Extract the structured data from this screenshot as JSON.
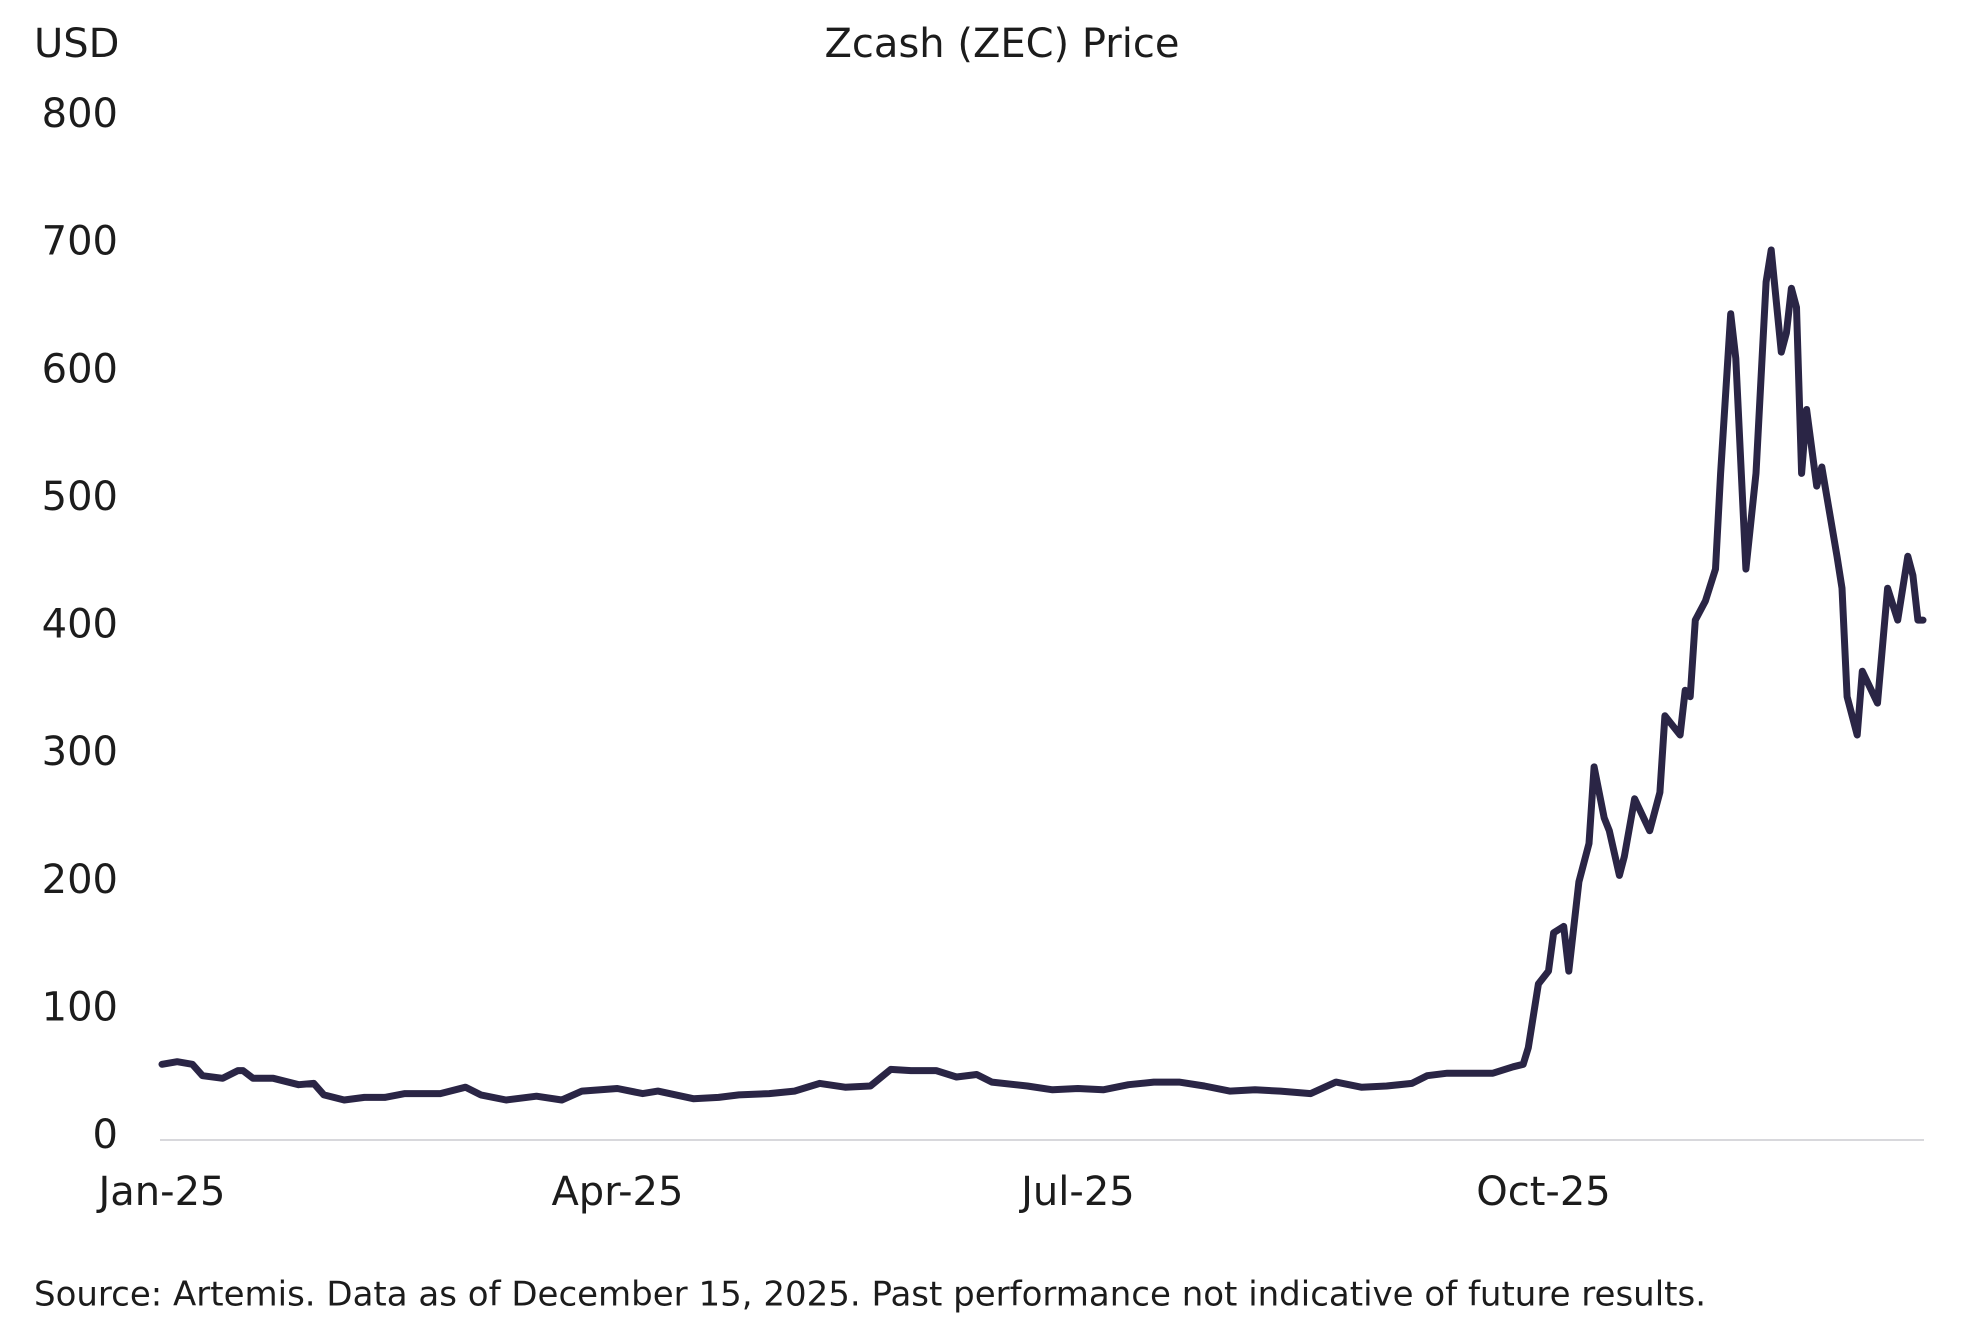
{
  "chart_data": {
    "type": "line",
    "title": "Zcash (ZEC) Price",
    "y_axis_label": "USD",
    "source": "Source: Artemis. Data as of December 15, 2025. Past performance not indicative of future results.",
    "color": "#2a2545",
    "x": [
      0,
      3,
      6,
      8,
      12,
      15,
      16,
      18,
      22,
      27,
      30,
      32,
      36,
      40,
      44,
      48,
      52,
      55,
      60,
      63,
      68,
      74,
      79,
      83,
      90,
      95,
      98,
      105,
      110,
      114,
      120,
      125,
      130,
      135,
      140,
      144,
      148,
      153,
      157,
      161,
      164,
      171,
      176,
      181,
      186,
      191,
      196,
      201,
      206,
      211,
      216,
      221,
      227,
      232,
      237,
      242,
      247,
      250,
      254,
      259,
      263,
      267,
      269,
      270,
      272,
      274,
      275,
      277,
      278,
      280,
      282,
      283,
      285,
      286,
      288,
      289,
      291,
      294,
      296,
      297,
      300,
      301,
      302,
      303,
      305,
      307,
      308,
      310,
      311,
      313,
      315,
      317,
      318,
      320,
      321,
      322,
      323,
      324,
      325,
      327,
      328,
      331,
      332,
      333,
      335,
      336,
      339,
      341,
      343,
      345,
      346,
      347,
      348
    ],
    "values": [
      57,
      59,
      57,
      48,
      46,
      52,
      52,
      46,
      46,
      41,
      42,
      33,
      29,
      31,
      31,
      34,
      34,
      34,
      39,
      33,
      29,
      32,
      29,
      36,
      38,
      34,
      36,
      30,
      31,
      33,
      34,
      36,
      42,
      39,
      40,
      53,
      52,
      52,
      47,
      49,
      43,
      40,
      37,
      38,
      37,
      41,
      43,
      43,
      40,
      36,
      37,
      36,
      34,
      43,
      39,
      40,
      42,
      48,
      50,
      50,
      50,
      55,
      57,
      70,
      120,
      130,
      160,
      165,
      130,
      200,
      230,
      290,
      250,
      240,
      205,
      220,
      265,
      240,
      270,
      330,
      315,
      350,
      345,
      405,
      420,
      445,
      520,
      645,
      610,
      445,
      520,
      670,
      695,
      615,
      630,
      665,
      650,
      520,
      570,
      510,
      525,
      455,
      430,
      345,
      315,
      365,
      340,
      430,
      405,
      455,
      440,
      405,
      405
    ],
    "xlim": [
      0,
      348
    ],
    "xticks": [
      {
        "value": 0,
        "label": "Jan-25"
      },
      {
        "value": 90,
        "label": "Apr-25"
      },
      {
        "value": 181,
        "label": "Jul-25"
      },
      {
        "value": 273,
        "label": "Oct-25"
      }
    ],
    "ylim": [
      0,
      800
    ],
    "yticks": [
      0,
      100,
      200,
      300,
      400,
      500,
      600,
      700,
      800
    ],
    "grid": false
  }
}
